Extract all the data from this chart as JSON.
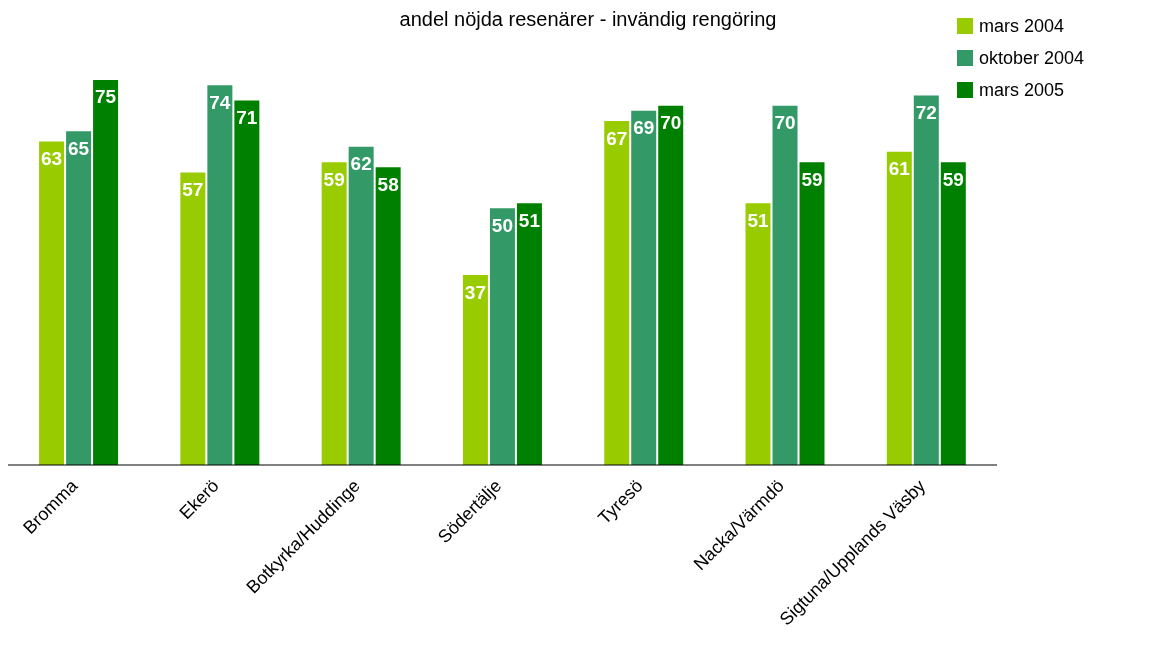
{
  "chart_data": {
    "type": "bar",
    "title": "andel nöjda resenärer - invändig rengöring",
    "categories": [
      "Bromma",
      "Ekerö",
      "Botkyrka/Huddinge",
      "Södertälje",
      "Tyresö",
      "Nacka/Värmdö",
      "Sigtuna/Upplands Väsby"
    ],
    "series": [
      {
        "name": "mars 2004",
        "color": "#99cc00",
        "values": [
          63,
          57,
          59,
          37,
          67,
          51,
          61
        ]
      },
      {
        "name": "oktober 2004",
        "color": "#339966",
        "values": [
          65,
          74,
          62,
          50,
          69,
          70,
          72
        ]
      },
      {
        "name": "mars 2005",
        "color": "#008000",
        "values": [
          75,
          71,
          58,
          51,
          70,
          59,
          59
        ]
      }
    ],
    "data_labels": true,
    "legend": "top right"
  }
}
